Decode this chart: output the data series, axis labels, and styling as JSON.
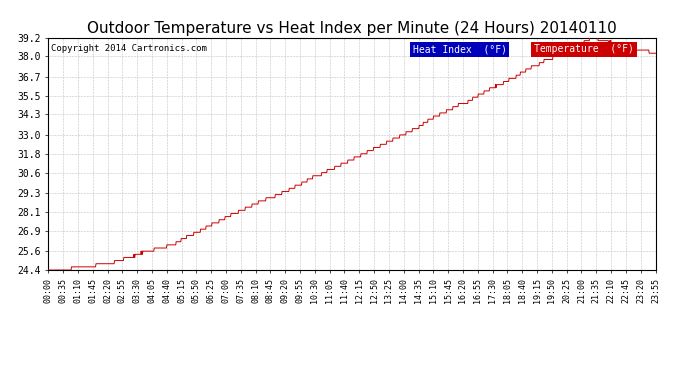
{
  "title": "Outdoor Temperature vs Heat Index per Minute (24 Hours) 20140110",
  "copyright": "Copyright 2014 Cartronics.com",
  "title_fontsize": 11,
  "bg_color": "#ffffff",
  "plot_bg_color": "#ffffff",
  "grid_color": "#bbbbbb",
  "line_color": "#cc0000",
  "ylim": [
    24.4,
    39.2
  ],
  "yticks": [
    24.4,
    25.6,
    26.9,
    28.1,
    29.3,
    30.6,
    31.8,
    33.0,
    34.3,
    35.5,
    36.7,
    38.0,
    39.2
  ],
  "legend_labels": [
    "Heat Index  (°F)",
    "Temperature  (°F)"
  ],
  "legend_heat_bg": "#0000bb",
  "legend_temp_bg": "#cc0000",
  "legend_text_color": "#ffffff",
  "xtick_labels": [
    "00:00",
    "00:35",
    "01:10",
    "01:45",
    "02:20",
    "02:55",
    "03:30",
    "04:05",
    "04:40",
    "05:15",
    "05:50",
    "06:25",
    "07:00",
    "07:35",
    "08:10",
    "08:45",
    "09:20",
    "09:55",
    "10:30",
    "11:05",
    "11:40",
    "12:15",
    "12:50",
    "13:25",
    "14:00",
    "14:35",
    "15:10",
    "15:45",
    "16:20",
    "16:55",
    "17:30",
    "18:05",
    "18:40",
    "19:15",
    "19:50",
    "20:25",
    "21:00",
    "21:35",
    "22:10",
    "22:45",
    "23:20",
    "23:55"
  ]
}
